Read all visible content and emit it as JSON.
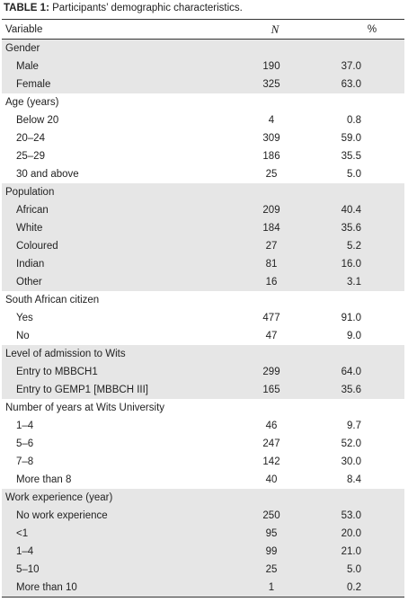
{
  "title": {
    "label": "TABLE 1:",
    "text": " Participants’ demographic characteristics."
  },
  "table": {
    "header": [
      "Variable",
      "N",
      "%"
    ],
    "groups": [
      {
        "name": "Gender",
        "rows": [
          [
            "Male",
            190,
            "37.0"
          ],
          [
            "Female",
            325,
            "63.0"
          ]
        ]
      },
      {
        "name": "Age (years)",
        "rows": [
          [
            "Below 20",
            4,
            "0.8"
          ],
          [
            "20–24",
            309,
            "59.0"
          ],
          [
            "25–29",
            186,
            "35.5"
          ],
          [
            "30 and above",
            25,
            "5.0"
          ]
        ]
      },
      {
        "name": "Population",
        "rows": [
          [
            "African",
            209,
            "40.4"
          ],
          [
            "White",
            184,
            "35.6"
          ],
          [
            "Coloured",
            27,
            "5.2"
          ],
          [
            "Indian",
            81,
            "16.0"
          ],
          [
            "Other",
            16,
            "3.1"
          ]
        ]
      },
      {
        "name": "South African citizen",
        "rows": [
          [
            "Yes",
            477,
            "91.0"
          ],
          [
            "No",
            47,
            "9.0"
          ]
        ]
      },
      {
        "name": "Level of admission to Wits",
        "rows": [
          [
            "Entry to MBBCH1",
            299,
            "64.0"
          ],
          [
            "Entry to GEMP1 [MBBCH III]",
            165,
            "35.6"
          ]
        ]
      },
      {
        "name": "Number of years at Wits University",
        "rows": [
          [
            "1–4",
            46,
            "9.7"
          ],
          [
            "5–6",
            247,
            "52.0"
          ],
          [
            "7–8",
            142,
            "30.0"
          ],
          [
            "More than 8",
            40,
            "8.4"
          ]
        ]
      },
      {
        "name": "Work experience (year)",
        "rows": [
          [
            "No work experience",
            250,
            "53.0"
          ],
          [
            "<1",
            95,
            "20.0"
          ],
          [
            "1–4",
            99,
            "21.0"
          ],
          [
            "5–10",
            25,
            "5.0"
          ],
          [
            "More than 10",
            1,
            "0.2"
          ]
        ]
      }
    ]
  }
}
